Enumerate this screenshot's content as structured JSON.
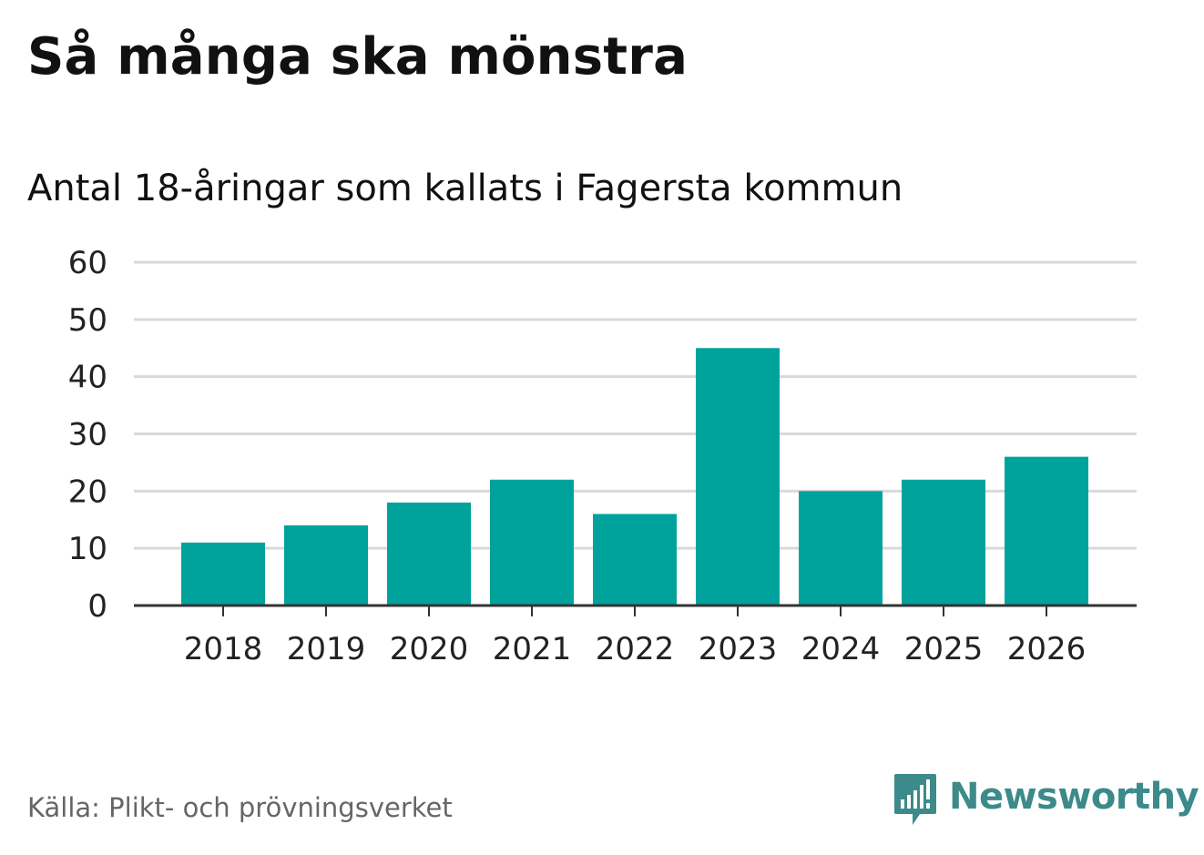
{
  "header": {
    "title": "Så många ska mönstra",
    "subtitle": "Antal 18-åringar som kallats i Fagersta kommun"
  },
  "footer": {
    "source": "Källa: Plikt- och prövningsverket",
    "brand": "Newsworthy"
  },
  "colors": {
    "bar": "#00a39c",
    "grid": "#d9d9d9",
    "axis": "#333333",
    "brand": "#3d8a8a"
  },
  "chart_data": {
    "type": "bar",
    "title": "Så många ska mönstra",
    "subtitle": "Antal 18-åringar som kallats i Fagersta kommun",
    "xlabel": "",
    "ylabel": "",
    "categories": [
      "2018",
      "2019",
      "2020",
      "2021",
      "2022",
      "2023",
      "2024",
      "2025",
      "2026"
    ],
    "values": [
      11,
      14,
      18,
      22,
      16,
      45,
      20,
      22,
      26
    ],
    "ylim": [
      0,
      60
    ],
    "yticks": [
      0,
      10,
      20,
      30,
      40,
      50,
      60
    ],
    "grid": true,
    "legend": "none"
  }
}
